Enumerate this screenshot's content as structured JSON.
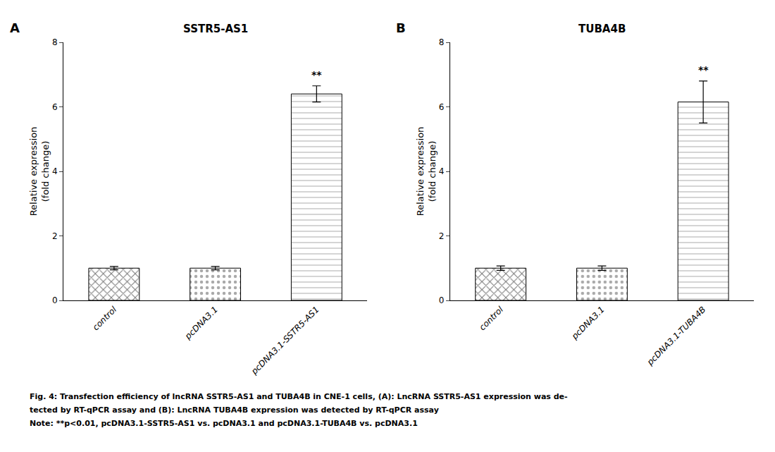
{
  "chart_data": [
    {
      "type": "bar",
      "title": "SSTR5-AS1",
      "panel_label": "A",
      "categories": [
        "control",
        "pcDNA3.1",
        "pcDNA3.1-SSTR5-AS1"
      ],
      "values": [
        1.0,
        1.0,
        6.4
      ],
      "errors": [
        0.05,
        0.05,
        0.25
      ],
      "colors": [
        "#7a7a7a",
        "#aaaaaa",
        "#d5d5d5"
      ],
      "ylabel": "Relative expression\n(fold change)",
      "ylim": [
        0,
        8
      ],
      "yticks": [
        0,
        2,
        4,
        6,
        8
      ],
      "grid": false,
      "annotations": [
        {
          "category": "pcDNA3.1-SSTR5-AS1",
          "text": "**"
        }
      ]
    },
    {
      "type": "bar",
      "title": "TUBA4B",
      "panel_label": "B",
      "categories": [
        "control",
        "pcDNA3.1",
        "pcDNA3.1-TUBA4B"
      ],
      "values": [
        1.0,
        1.0,
        6.15
      ],
      "errors": [
        0.07,
        0.07,
        0.65
      ],
      "colors": [
        "#7a7a7a",
        "#aaaaaa",
        "#d5d5d5"
      ],
      "ylabel": "Relative expression\n(fold change)",
      "ylim": [
        0,
        8
      ],
      "yticks": [
        0,
        2,
        4,
        6,
        8
      ],
      "grid": false,
      "annotations": [
        {
          "category": "pcDNA3.1-TUBA4B",
          "text": "**"
        }
      ]
    }
  ],
  "caption": [
    "Fig. 4: Transfection efficiency of lncRNA SSTR5-AS1 and TUBA4B in CNE-1 cells, (A): LncRNA SSTR5-AS1 expression was de-",
    "tected by RT-qPCR assay and (B): LncRNA TUBA4B expression was detected by RT-qPCR assay",
    "Note: **p<0.01, pcDNA3.1-SSTR5-AS1 vs. pcDNA3.1 and pcDNA3.1-TUBA4B vs. pcDNA3.1"
  ]
}
